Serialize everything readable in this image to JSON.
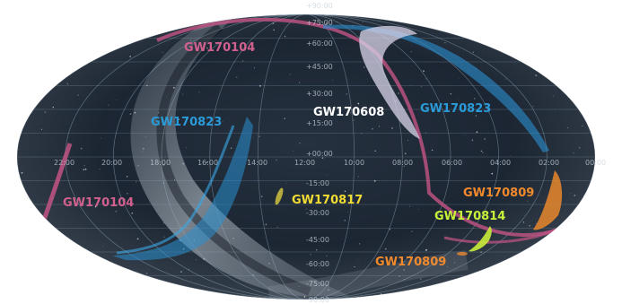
{
  "sky_map": {
    "colors": {
      "background": "#ffffff",
      "sky": "#18212d",
      "grid": "#9fb2c4",
      "milky_way": "#b9c3cc"
    },
    "dec_labels": [
      "+90:00",
      "+75:00",
      "+60:00",
      "+45:00",
      "+30:00",
      "+15:00",
      "+00:00",
      "-15:00",
      "-30:00",
      "-45:00",
      "-60:00",
      "-75:00",
      "-90:00"
    ],
    "ra_labels": [
      "22:00",
      "20:00",
      "18:00",
      "16:00",
      "14:00",
      "12:00",
      "10:00",
      "08:00",
      "06:00",
      "04:00",
      "02:00",
      "00:00"
    ],
    "events": [
      {
        "id": "gw170104-north",
        "label": "GW170104",
        "color": "#d2608e"
      },
      {
        "id": "gw170104-south",
        "label": "GW170104",
        "color": "#d2608e"
      },
      {
        "id": "gw170823-west",
        "label": "GW170823",
        "color": "#2a9bd8"
      },
      {
        "id": "gw170823-east",
        "label": "GW170823",
        "color": "#2a9bd8"
      },
      {
        "id": "gw170608",
        "label": "GW170608",
        "color": "#ffffff"
      },
      {
        "id": "gw170817",
        "label": "GW170817",
        "color": "#f0dc32"
      },
      {
        "id": "gw170809-east",
        "label": "GW170809",
        "color": "#f08a2c"
      },
      {
        "id": "gw170809-south",
        "label": "GW170809",
        "color": "#f08a2c"
      },
      {
        "id": "gw170814",
        "label": "GW170814",
        "color": "#c8f03a"
      }
    ]
  }
}
